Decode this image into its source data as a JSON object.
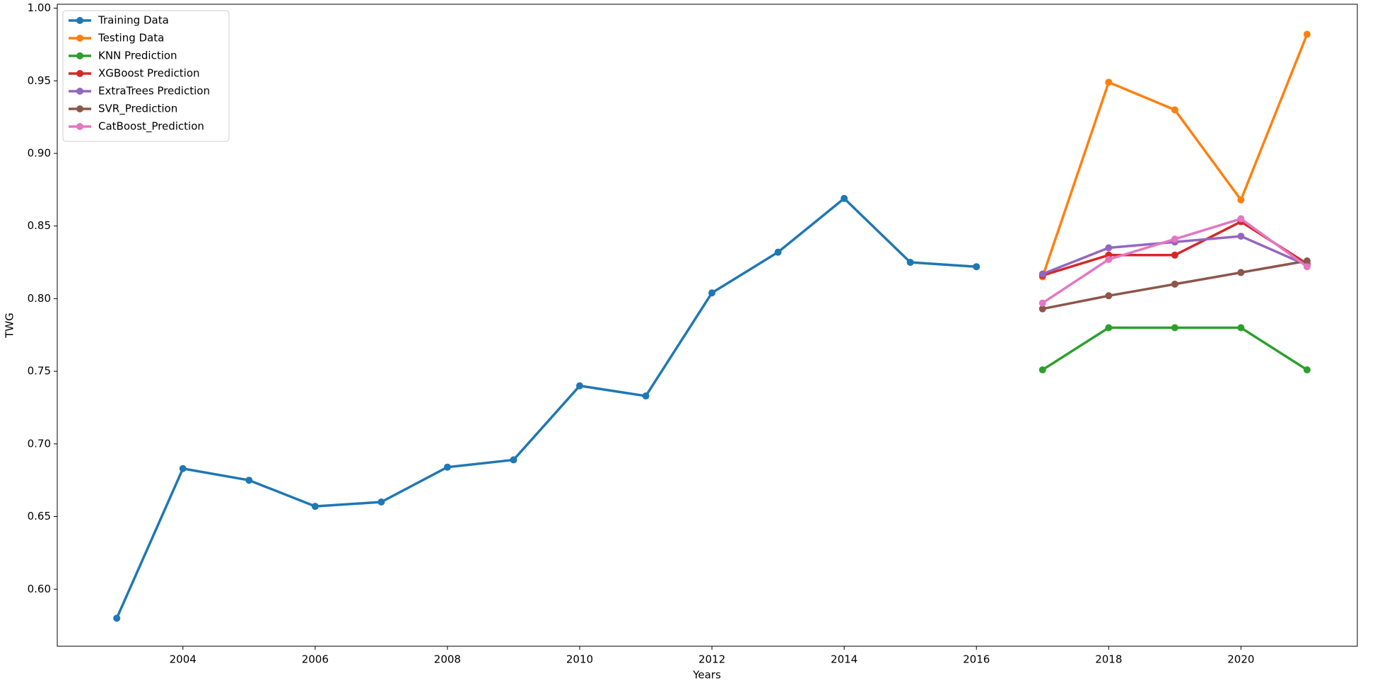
{
  "chart_data": {
    "type": "line",
    "xlabel": "Years",
    "ylabel": "TWG",
    "xlim": [
      2002.1,
      2021.76
    ],
    "xticks": [
      2004,
      2006,
      2008,
      2010,
      2012,
      2014,
      2016,
      2018,
      2020
    ],
    "ylim": [
      0.5607,
      1.0027
    ],
    "yticks": [
      {
        "value": 0.6,
        "label": "0.60"
      },
      0.65,
      {
        "value": 0.7,
        "label": "0.70"
      },
      0.75,
      {
        "value": 0.8,
        "label": "0.80"
      },
      0.85,
      {
        "value": 0.9,
        "label": "0.90"
      },
      0.95,
      {
        "value": 1.0,
        "label": "1.00"
      }
    ],
    "grid": false,
    "legend": "upper left",
    "series": [
      {
        "name": "Training Data",
        "color": "#1f77b4",
        "x": [
          2003,
          2004,
          2005,
          2006,
          2007,
          2008,
          2009,
          2010,
          2011,
          2012,
          2013,
          2014,
          2015,
          2016
        ],
        "values": [
          0.58,
          0.683,
          0.675,
          0.657,
          0.66,
          0.684,
          0.689,
          0.74,
          0.733,
          0.804,
          0.832,
          0.869,
          0.825,
          0.822
        ]
      },
      {
        "name": "Testing Data",
        "color": "#ff7f0e",
        "x": [
          2017,
          2018,
          2019,
          2020,
          2021
        ],
        "values": [
          0.815,
          0.949,
          0.93,
          0.868,
          0.982
        ]
      },
      {
        "name": "KNN Prediction",
        "color": "#2ca02c",
        "x": [
          2017,
          2018,
          2019,
          2020,
          2021
        ],
        "values": [
          0.751,
          0.78,
          0.78,
          0.78,
          0.751
        ]
      },
      {
        "name": "XGBoost Prediction",
        "color": "#d62728",
        "x": [
          2017,
          2018,
          2019,
          2020,
          2021
        ],
        "values": [
          0.816,
          0.83,
          0.83,
          0.853,
          0.824
        ]
      },
      {
        "name": "ExtraTrees Prediction",
        "color": "#9467bd",
        "x": [
          2017,
          2018,
          2019,
          2020,
          2021
        ],
        "values": [
          0.817,
          0.835,
          0.839,
          0.843,
          0.823
        ]
      },
      {
        "name": "SVR_Prediction",
        "color": "#8c564b",
        "x": [
          2017,
          2018,
          2019,
          2020,
          2021
        ],
        "values": [
          0.793,
          0.802,
          0.81,
          0.818,
          0.826
        ]
      },
      {
        "name": "CatBoost_Prediction",
        "color": "#e377c2",
        "x": [
          2017,
          2018,
          2019,
          2020,
          2021
        ],
        "values": [
          0.797,
          0.827,
          0.841,
          0.855,
          0.822
        ]
      }
    ]
  }
}
